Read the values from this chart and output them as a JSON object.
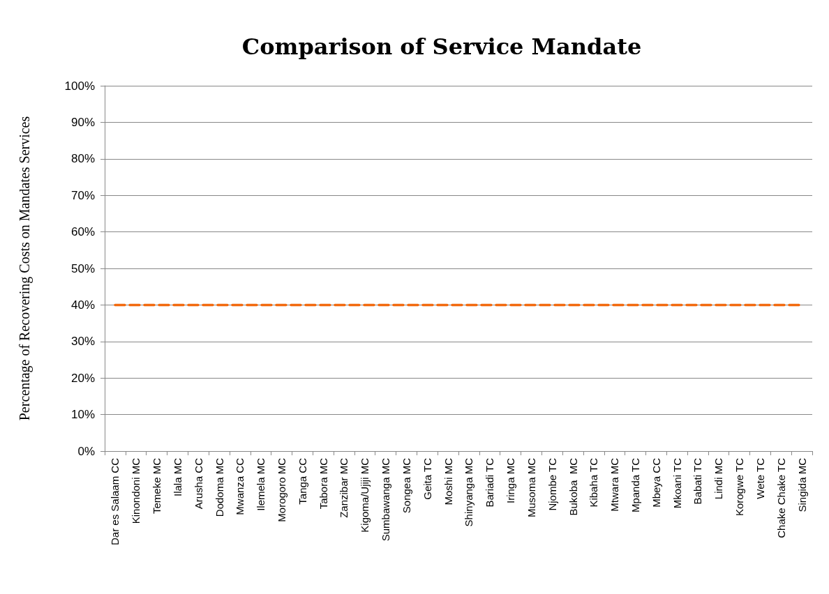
{
  "chart_data": {
    "type": "line",
    "title": "Comparison of Service Mandate",
    "ylabel": "Percentage of Recovering Costs on Mandates Services",
    "categories": [
      "Dar es Salaam CC",
      "Kinondoni MC",
      "Temeke MC",
      "Ilala MC",
      "Arusha CC",
      "Dodoma MC",
      "Mwanza CC",
      "Ilemela MC",
      "Morogoro MC",
      "Tanga CC",
      "Tabora MC",
      "Zanzibar MC",
      "Kigoma/Ujiji MC",
      "Sumbawanga MC",
      "Songea MC",
      "Geita TC",
      "Moshi MC",
      "Shinyanga MC",
      "Bariadi TC",
      "Iringa MC",
      "Musoma MC",
      "Njombe TC",
      "Bukoba  MC",
      "Kibaha TC",
      "Mtwara MC",
      "Mpanda TC",
      "Mbeya CC",
      "Mkoani TC",
      "Babati TC",
      "Lindi MC",
      "Korogwe TC",
      "Wete TC",
      "Chake Chake TC",
      "Singida MC"
    ],
    "values": [
      40,
      40,
      40,
      40,
      40,
      40,
      40,
      40,
      40,
      40,
      40,
      40,
      40,
      40,
      40,
      40,
      40,
      40,
      40,
      40,
      40,
      40,
      40,
      40,
      40,
      40,
      40,
      40,
      40,
      40,
      40,
      40,
      40,
      40
    ],
    "color": "#f26a0f",
    "line_style": "dashed",
    "marker": "none",
    "ylim": [
      0,
      100
    ],
    "yticks": [
      {
        "value": 0,
        "label": "0%"
      },
      {
        "value": 10,
        "label": "10%"
      },
      {
        "value": 20,
        "label": "20%"
      },
      {
        "value": 30,
        "label": "30%"
      },
      {
        "value": 40,
        "label": "40%"
      },
      {
        "value": 50,
        "label": "50%"
      },
      {
        "value": 60,
        "label": "60%"
      },
      {
        "value": 70,
        "label": "70%"
      },
      {
        "value": 80,
        "label": "80%"
      },
      {
        "value": 90,
        "label": "90%"
      },
      {
        "value": 100,
        "label": "100%"
      }
    ],
    "grid": "y"
  }
}
